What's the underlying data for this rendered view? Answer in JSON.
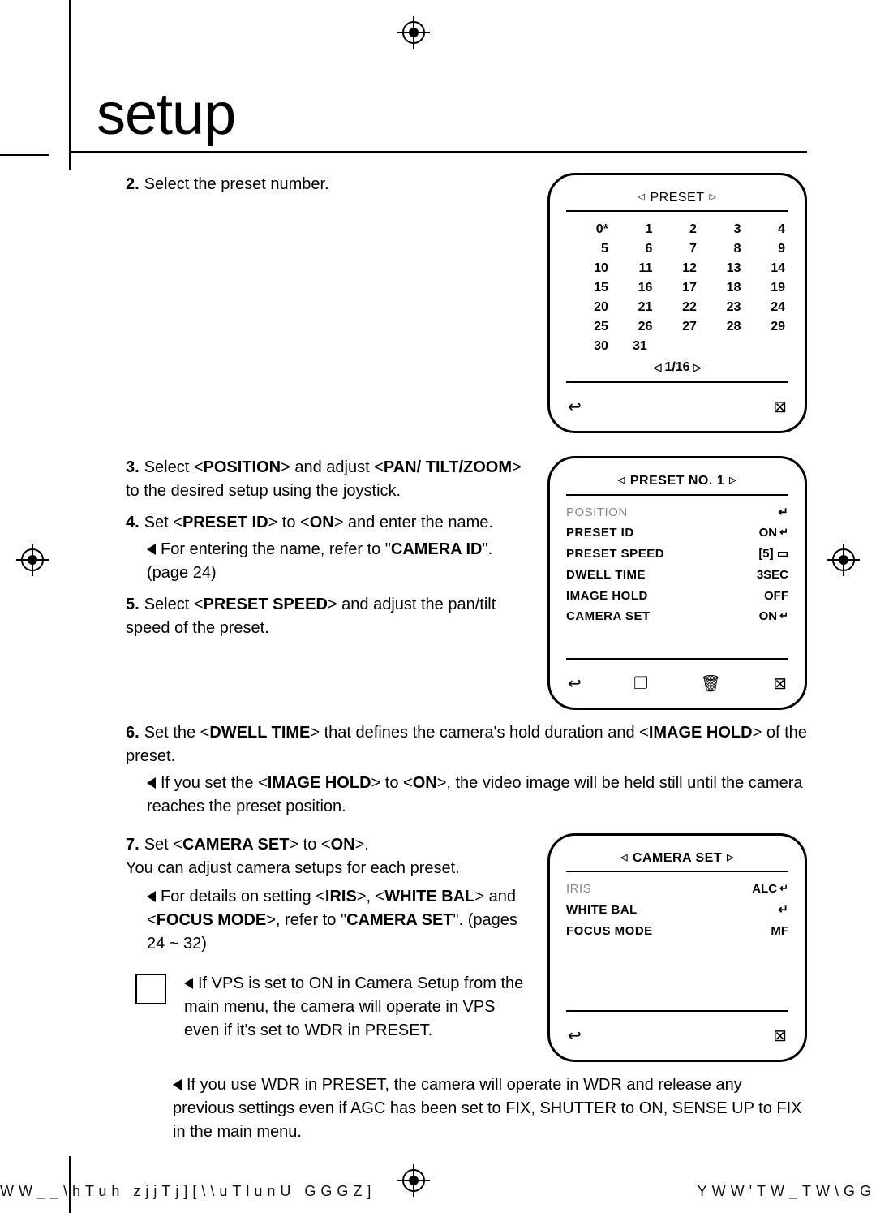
{
  "page": {
    "title": "setup"
  },
  "steps": {
    "s2": {
      "num": "2.",
      "text": "Select the preset number."
    },
    "s3": {
      "num": "3.",
      "line1a": "Select <",
      "position": "POSITION",
      "line1b": "> and adjust <",
      "pan": "PAN/ TILT/ZOOM",
      "line1c": "> to the desired setup using the joystick."
    },
    "s4": {
      "num": "4.",
      "line1a": "Set <",
      "presetid": "PRESET ID",
      "line1b": "> to <",
      "on": "ON",
      "line1c": "> and enter the name."
    },
    "s4sub": {
      "a": "For entering the name, refer to \"",
      "cam": "CAMERA ID",
      "b": "\". (page 24)"
    },
    "s5": {
      "num": "5.",
      "line1a": "Select <",
      "ps": "PRESET SPEED",
      "line1b": "> and adjust the pan/tilt speed of the preset."
    },
    "s6": {
      "num": "6.",
      "a": "Set the <",
      "dt": "DWELL TIME",
      "b": "> that defines the camera's hold duration and <",
      "ih": "IMAGE HOLD",
      "c": "> of the preset."
    },
    "s6sub": {
      "a": "If you set the <",
      "ih": "IMAGE HOLD",
      "b": "> to <",
      "on": "ON",
      "c": ">, the video image will be held still until the camera reaches the preset position."
    },
    "s7": {
      "num": "7.",
      "a": "Set <",
      "cs": "CAMERA SET",
      "b": "> to <",
      "on": "ON",
      "c": ">.",
      "d": "You can adjust camera setups for each preset."
    },
    "s7sub": {
      "a": "For details on setting <",
      "iris": "IRIS",
      "b": ">, <",
      "wb": "WHITE BAL",
      "c": "> and <",
      "fm": "FOCUS MODE",
      "d": ">, refer to \"",
      "cs": "CAMERA SET",
      "e": "\". (pages 24 ~ 32)"
    },
    "note1": "If VPS is set to ON in Camera Setup from the main menu, the camera will operate in VPS even if it's set to WDR in PRESET.",
    "note2": "If you use WDR in PRESET, the camera will operate in WDR and release any previous settings even if AGC has been set to FIX, SHUTTER to ON, SENSE UP to FIX in the main menu."
  },
  "panel1": {
    "title": "PRESET",
    "rows": [
      [
        "0*",
        "1",
        "2",
        "3",
        "4"
      ],
      [
        "5",
        "6",
        "7",
        "8",
        "9"
      ],
      [
        "10",
        "11",
        "12",
        "13",
        "14"
      ],
      [
        "15",
        "16",
        "17",
        "18",
        "19"
      ],
      [
        "20",
        "21",
        "22",
        "23",
        "24"
      ],
      [
        "25",
        "26",
        "27",
        "28",
        "29"
      ],
      [
        "30",
        "31"
      ]
    ],
    "pager": "1/16"
  },
  "panel2": {
    "title": "PRESET NO. 1",
    "items": [
      {
        "k": "POSITION",
        "v": "↵",
        "sel": true
      },
      {
        "k": "PRESET ID",
        "v": "ON",
        "g": "↵"
      },
      {
        "k": "PRESET SPEED",
        "v": "[5] ▭"
      },
      {
        "k": "DWELL TIME",
        "v": "3SEC"
      },
      {
        "k": "IMAGE HOLD",
        "v": "OFF"
      },
      {
        "k": "CAMERA SET",
        "v": "ON",
        "g": "↵"
      }
    ]
  },
  "panel3": {
    "title": "CAMERA SET",
    "items": [
      {
        "k": "IRIS",
        "v": "ALC",
        "g": "↵",
        "sel": true
      },
      {
        "k": "WHITE BAL",
        "v": "↵"
      },
      {
        "k": "FOCUS MODE",
        "v": "MF"
      }
    ]
  },
  "footer": {
    "left": "WW__\\hTuh zjjTj][\\\\uTlunU    GGGZ]",
    "right": "YWW'TW_TW\\GG"
  },
  "colors": {
    "text": "#000000",
    "muted": "#888888",
    "bg": "#ffffff"
  }
}
